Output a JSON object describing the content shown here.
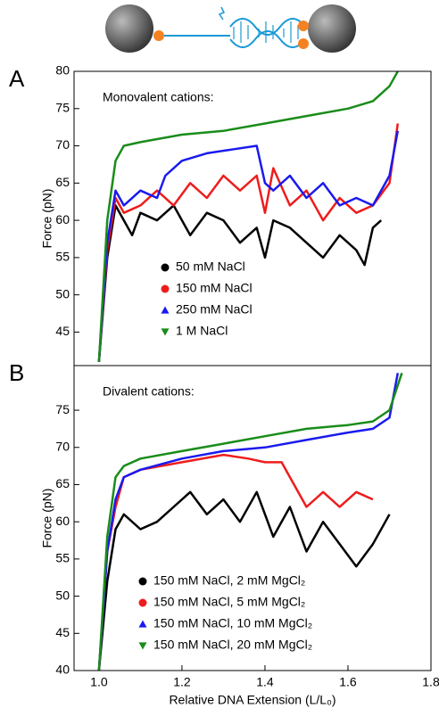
{
  "chart_data": [
    {
      "type": "line",
      "panel_label": "A",
      "annotation": "Monovalent cations:",
      "ylabel": "Force (pN)",
      "xlim": [
        0.94,
        1.8
      ],
      "ylim": [
        40.5,
        80
      ],
      "yticks": [
        45,
        50,
        55,
        60,
        65,
        70,
        75,
        80
      ],
      "legend": "lower left",
      "series": [
        {
          "name": "50 mM NaCl",
          "color": "#000000",
          "marker": "circle",
          "x": [
            1.0,
            1.02,
            1.04,
            1.06,
            1.08,
            1.1,
            1.14,
            1.18,
            1.22,
            1.26,
            1.3,
            1.34,
            1.38,
            1.4,
            1.42,
            1.46,
            1.5,
            1.54,
            1.58,
            1.62,
            1.64,
            1.66,
            1.68
          ],
          "values": [
            41,
            55,
            62,
            60,
            58,
            61,
            60,
            62,
            58,
            61,
            60,
            57,
            59,
            55,
            60,
            59,
            57,
            55,
            58,
            56,
            54,
            59,
            60
          ]
        },
        {
          "name": "150 mM NaCl",
          "color": "#ee1c1c",
          "marker": "circle",
          "x": [
            1.0,
            1.02,
            1.04,
            1.06,
            1.1,
            1.14,
            1.18,
            1.22,
            1.26,
            1.3,
            1.34,
            1.38,
            1.4,
            1.42,
            1.46,
            1.5,
            1.54,
            1.58,
            1.62,
            1.66,
            1.7,
            1.72
          ],
          "values": [
            41,
            56,
            63,
            61,
            62,
            64,
            62,
            65,
            63,
            66,
            64,
            66,
            61,
            67,
            62,
            64,
            60,
            63,
            61,
            62,
            65,
            73
          ]
        },
        {
          "name": "250 mM NaCl",
          "color": "#1a1aee",
          "marker": "triangle-up",
          "x": [
            1.0,
            1.02,
            1.04,
            1.06,
            1.1,
            1.14,
            1.16,
            1.2,
            1.26,
            1.32,
            1.38,
            1.4,
            1.42,
            1.46,
            1.5,
            1.54,
            1.58,
            1.62,
            1.66,
            1.7,
            1.72
          ],
          "values": [
            41,
            57,
            64,
            62,
            64,
            63,
            66,
            68,
            69,
            69.5,
            70,
            65,
            64,
            66,
            63,
            65,
            62,
            63,
            62,
            66,
            72
          ]
        },
        {
          "name": "1 M NaCl",
          "color": "#1a8c1a",
          "marker": "triangle-down",
          "x": [
            1.0,
            1.02,
            1.04,
            1.06,
            1.1,
            1.2,
            1.3,
            1.4,
            1.5,
            1.6,
            1.66,
            1.7,
            1.72
          ],
          "values": [
            41,
            60,
            68,
            70,
            70.5,
            71.5,
            72,
            73,
            74,
            75,
            76,
            78,
            80
          ]
        }
      ]
    },
    {
      "type": "line",
      "panel_label": "B",
      "annotation": "Divalent cations:",
      "ylabel": "Force (pN)",
      "xlabel": "Relative DNA Extension (L/L₀)",
      "xlim": [
        0.94,
        1.8
      ],
      "xticks": [
        {
          "value": 1,
          "label": "1.0"
        },
        {
          "value": 1.2,
          "label": "1.2"
        },
        {
          "value": 1.4,
          "label": "1.4"
        },
        {
          "value": 1.6,
          "label": "1.6"
        },
        {
          "value": 1.8,
          "label": "1.8"
        }
      ],
      "ylim": [
        40,
        81
      ],
      "yticks": [
        40,
        45,
        50,
        55,
        60,
        65,
        70,
        75
      ],
      "legend": "lower left",
      "series": [
        {
          "name": "150 mM NaCl, 2 mM MgCl₂",
          "color": "#000000",
          "marker": "circle",
          "x": [
            1.0,
            1.02,
            1.04,
            1.06,
            1.1,
            1.14,
            1.18,
            1.22,
            1.26,
            1.3,
            1.34,
            1.38,
            1.42,
            1.46,
            1.5,
            1.54,
            1.58,
            1.62,
            1.66,
            1.7
          ],
          "values": [
            40,
            52,
            59,
            61,
            59,
            60,
            62,
            64,
            61,
            63,
            60,
            64,
            58,
            62,
            56,
            60,
            57,
            54,
            57,
            61
          ]
        },
        {
          "name": "150 mM NaCl, 5 mM MgCl₂",
          "color": "#ee1c1c",
          "marker": "circle",
          "x": [
            1.0,
            1.02,
            1.04,
            1.06,
            1.1,
            1.2,
            1.3,
            1.36,
            1.4,
            1.44,
            1.46,
            1.5,
            1.54,
            1.58,
            1.62,
            1.66
          ],
          "values": [
            40,
            56,
            62,
            66,
            67,
            68,
            69,
            68.5,
            68,
            68,
            66,
            62,
            64,
            62,
            64,
            63
          ]
        },
        {
          "name": "150 mM NaCl, 10 mM MgCl₂",
          "color": "#1a1aee",
          "marker": "triangle-up",
          "x": [
            1.0,
            1.02,
            1.04,
            1.06,
            1.1,
            1.2,
            1.3,
            1.4,
            1.5,
            1.6,
            1.66,
            1.7,
            1.72
          ],
          "values": [
            40,
            56,
            63,
            66,
            67,
            68.5,
            69.5,
            70,
            71,
            72,
            72.5,
            74,
            80
          ]
        },
        {
          "name": "150 mM NaCl, 20 mM MgCl₂",
          "color": "#1a8c1a",
          "marker": "triangle-down",
          "x": [
            1.0,
            1.02,
            1.04,
            1.06,
            1.1,
            1.2,
            1.3,
            1.4,
            1.5,
            1.6,
            1.66,
            1.7,
            1.73
          ],
          "values": [
            40,
            58,
            66,
            67.5,
            68.5,
            69.5,
            70.5,
            71.5,
            72.5,
            73,
            73.5,
            75,
            80
          ]
        }
      ]
    }
  ]
}
